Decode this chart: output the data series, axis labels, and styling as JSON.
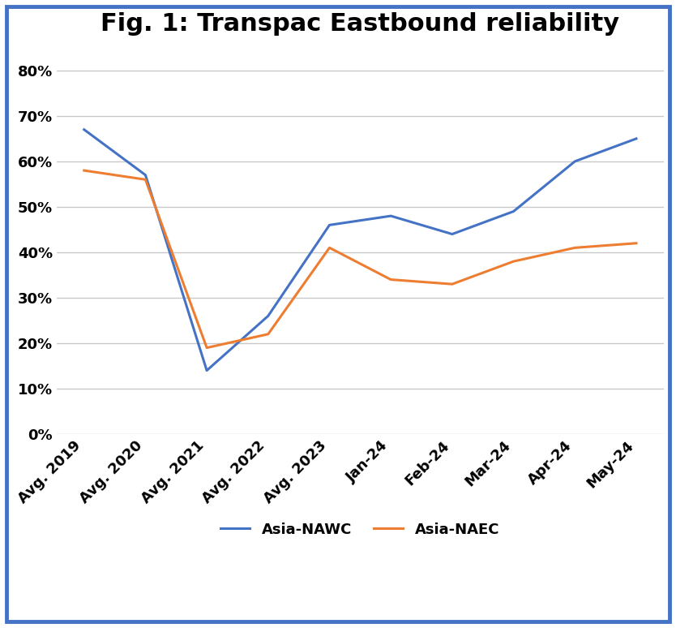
{
  "title": "Fig. 1: Transpac Eastbound reliability",
  "categories": [
    "Avg. 2019",
    "Avg. 2020",
    "Avg. 2021",
    "Avg. 2022",
    "Avg. 2023",
    "Jan-24",
    "Feb-24",
    "Mar-24",
    "Apr-24",
    "May-24"
  ],
  "asia_nawc": [
    0.67,
    0.57,
    0.14,
    0.26,
    0.46,
    0.48,
    0.44,
    0.49,
    0.6,
    0.65
  ],
  "asia_naec": [
    0.58,
    0.56,
    0.19,
    0.22,
    0.41,
    0.34,
    0.33,
    0.38,
    0.41,
    0.42
  ],
  "nawc_color": "#4472C4",
  "naec_color": "#ED7D31",
  "nawc_label": "Asia-NAWC",
  "naec_label": "Asia-NAEC",
  "ylim": [
    0.0,
    0.85
  ],
  "yticks": [
    0.0,
    0.1,
    0.2,
    0.3,
    0.4,
    0.5,
    0.6,
    0.7,
    0.8
  ],
  "background_color": "#FFFFFF",
  "plot_bg_color": "#FFFFFF",
  "grid_color": "#C8C8C8",
  "line_width": 2.2,
  "title_fontsize": 22,
  "tick_fontsize": 13,
  "legend_fontsize": 13,
  "border_color": "#4472C4",
  "border_width": 3.5
}
